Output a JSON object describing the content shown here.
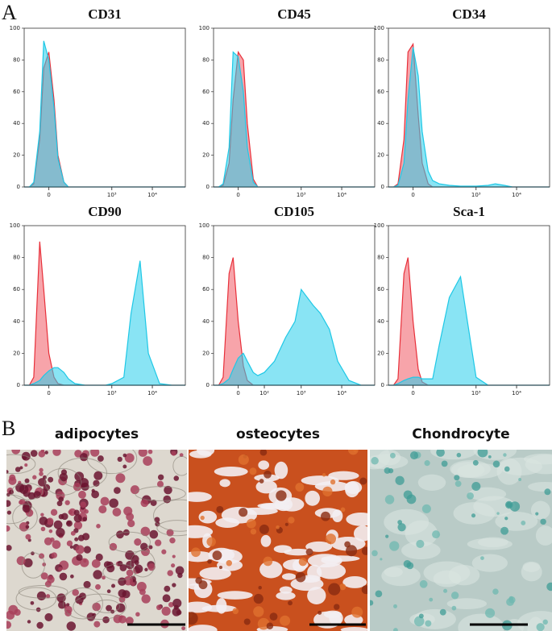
{
  "panel_labels": [
    "A",
    "B"
  ],
  "chart_data": [
    {
      "type": "area",
      "title": "CD31",
      "xscale": "biexponential",
      "x": [
        -90,
        -60,
        -40,
        -20,
        -10,
        0,
        10,
        20,
        40,
        60,
        100,
        200,
        400,
        700,
        1000,
        2000,
        3000,
        5000,
        8000,
        15000,
        30000,
        64000
      ],
      "xlim": [
        -90,
        64000
      ],
      "ylim": [
        0,
        100
      ],
      "yticks": [
        0,
        20,
        40,
        60,
        80,
        100
      ],
      "xticks": [
        0,
        {
          "value": 1000,
          "label": "10³"
        },
        {
          "value": 10000,
          "label": "10⁴"
        }
      ],
      "series": [
        {
          "color": "#e8303a",
          "values": [
            0,
            0,
            2,
            30,
            75,
            85,
            55,
            20,
            3,
            0,
            0,
            0,
            0,
            0,
            0,
            0,
            0,
            0,
            0,
            0,
            0,
            0
          ]
        },
        {
          "color": "#1ec8e6",
          "values": [
            0,
            0,
            3,
            35,
            92,
            80,
            50,
            18,
            3,
            0,
            0,
            0,
            0,
            0,
            0,
            0,
            0,
            0,
            0,
            0,
            0,
            0
          ]
        }
      ]
    },
    {
      "type": "area",
      "title": "CD45",
      "xscale": "biexponential",
      "x": [
        -90,
        -60,
        -40,
        -20,
        -10,
        0,
        10,
        20,
        40,
        60,
        100,
        200,
        400,
        700,
        1000,
        2000,
        3000,
        5000,
        8000,
        15000,
        30000,
        64000
      ],
      "xlim": [
        -90,
        64000
      ],
      "ylim": [
        0,
        100
      ],
      "yticks": [
        0,
        20,
        40,
        60,
        80,
        100
      ],
      "xticks": [
        0,
        {
          "value": 1000,
          "label": "10³"
        },
        {
          "value": 10000,
          "label": "10⁴"
        }
      ],
      "series": [
        {
          "color": "#e8303a",
          "values": [
            0,
            0,
            1,
            15,
            55,
            85,
            80,
            40,
            5,
            0,
            0,
            0,
            0,
            0,
            0,
            0,
            0,
            0,
            0,
            0,
            0,
            0
          ]
        },
        {
          "color": "#1ec8e6",
          "values": [
            0,
            0,
            2,
            25,
            85,
            82,
            60,
            25,
            3,
            0,
            0,
            0,
            0,
            0,
            0,
            0,
            0,
            0,
            0,
            0,
            0,
            0
          ]
        }
      ]
    },
    {
      "type": "area",
      "title": "CD34",
      "xscale": "biexponential",
      "x": [
        -90,
        -60,
        -40,
        -20,
        -10,
        0,
        10,
        20,
        40,
        60,
        100,
        200,
        400,
        700,
        1000,
        2000,
        3000,
        5000,
        8000,
        15000,
        30000,
        64000
      ],
      "xlim": [
        -90,
        64000
      ],
      "ylim": [
        0,
        100
      ],
      "yticks": [
        0,
        20,
        40,
        60,
        80,
        100
      ],
      "xticks": [
        0,
        {
          "value": 1000,
          "label": "10³"
        },
        {
          "value": 10000,
          "label": "10⁴"
        }
      ],
      "series": [
        {
          "color": "#e8303a",
          "values": [
            0,
            0,
            2,
            30,
            85,
            90,
            45,
            15,
            2,
            0,
            0,
            0,
            0,
            0,
            0,
            0,
            0,
            0,
            0,
            0,
            0,
            0
          ]
        },
        {
          "color": "#1ec8e6",
          "values": [
            0,
            0,
            1,
            15,
            55,
            88,
            70,
            35,
            10,
            4,
            2,
            1,
            0.5,
            0.5,
            0.5,
            1,
            2,
            1,
            0,
            0,
            0,
            0
          ]
        }
      ]
    },
    {
      "type": "area",
      "title": "CD90",
      "xscale": "biexponential",
      "x": [
        -90,
        -60,
        -40,
        -20,
        -10,
        0,
        10,
        20,
        40,
        60,
        100,
        200,
        400,
        700,
        1000,
        2000,
        3000,
        5000,
        8000,
        15000,
        30000,
        64000
      ],
      "xlim": [
        -90,
        64000
      ],
      "ylim": [
        0,
        100
      ],
      "yticks": [
        0,
        20,
        40,
        60,
        80,
        100
      ],
      "xticks": [
        0,
        {
          "value": 1000,
          "label": "10³"
        },
        {
          "value": 10000,
          "label": "10⁴"
        }
      ],
      "series": [
        {
          "color": "#e8303a",
          "values": [
            0,
            0,
            5,
            90,
            60,
            20,
            5,
            1,
            0,
            0,
            0,
            0,
            0,
            0,
            0,
            0,
            0,
            0,
            0,
            0,
            0,
            0
          ]
        },
        {
          "color": "#1ec8e6",
          "values": [
            0,
            0,
            1,
            3,
            6,
            9,
            11,
            11,
            8,
            4,
            1,
            0,
            0,
            0,
            1,
            5,
            45,
            78,
            20,
            1,
            0,
            0
          ]
        }
      ]
    },
    {
      "type": "area",
      "title": "CD105",
      "xscale": "biexponential",
      "x": [
        -90,
        -60,
        -40,
        -20,
        -10,
        0,
        10,
        20,
        40,
        60,
        100,
        200,
        400,
        700,
        1000,
        2000,
        3000,
        5000,
        8000,
        15000,
        30000,
        64000
      ],
      "xlim": [
        -90,
        64000
      ],
      "ylim": [
        0,
        100
      ],
      "yticks": [
        0,
        20,
        40,
        60,
        80,
        100
      ],
      "xticks": [
        0,
        {
          "value": 100,
          "label": "10²"
        },
        {
          "value": 1000,
          "label": "10³"
        },
        {
          "value": 10000,
          "label": "10⁴"
        }
      ],
      "series": [
        {
          "color": "#e8303a",
          "values": [
            0,
            0,
            5,
            70,
            80,
            40,
            12,
            3,
            0,
            0,
            0,
            0,
            0,
            0,
            0,
            0,
            0,
            0,
            0,
            0,
            0,
            0
          ]
        },
        {
          "color": "#1ec8e6",
          "values": [
            0,
            0,
            1,
            4,
            10,
            17,
            20,
            15,
            8,
            6,
            8,
            15,
            30,
            40,
            60,
            50,
            45,
            35,
            15,
            3,
            0,
            0
          ]
        }
      ]
    },
    {
      "type": "area",
      "title": "Sca-1",
      "xscale": "biexponential",
      "x": [
        -90,
        -60,
        -40,
        -20,
        -10,
        0,
        10,
        20,
        40,
        60,
        100,
        200,
        400,
        700,
        1000,
        2000,
        3000,
        5000,
        8000,
        15000,
        30000,
        64000
      ],
      "xlim": [
        -90,
        64000
      ],
      "ylim": [
        0,
        100
      ],
      "yticks": [
        0,
        20,
        40,
        60,
        80,
        100
      ],
      "xticks": [
        0,
        {
          "value": 1000,
          "label": "10³"
        },
        {
          "value": 10000,
          "label": "10⁴"
        }
      ],
      "series": [
        {
          "color": "#e8303a",
          "values": [
            0,
            0,
            4,
            70,
            80,
            40,
            10,
            2,
            0,
            0,
            0,
            0,
            0,
            0,
            0,
            0,
            0,
            0,
            0,
            0,
            0,
            0
          ]
        },
        {
          "color": "#1ec8e6",
          "values": [
            0,
            0,
            1,
            3,
            4,
            5,
            5,
            4,
            4,
            4,
            25,
            55,
            68,
            30,
            5,
            0,
            0,
            0,
            0,
            0,
            0,
            0
          ]
        }
      ]
    }
  ],
  "images": [
    {
      "label": "adipocytes"
    },
    {
      "label": "osteocytes"
    },
    {
      "label": "Chondrocyte"
    }
  ]
}
